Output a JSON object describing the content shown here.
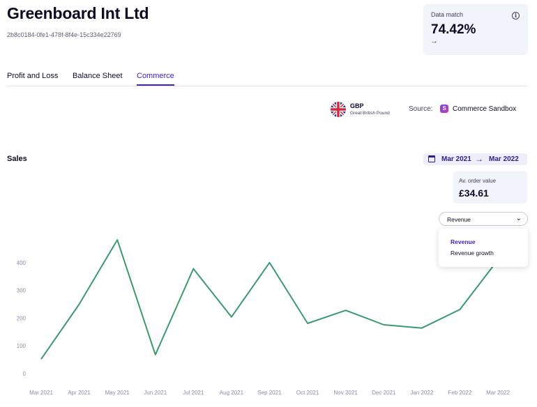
{
  "company": {
    "name": "Greenboard Int Ltd",
    "id": "2b8c0184-0fe1-478f-8f4e-15c334e22769"
  },
  "data_match": {
    "label": "Data match",
    "value": "74.42%",
    "arrow": "→",
    "info_icon": "i"
  },
  "tabs": [
    {
      "label": "Profit and Loss",
      "active": false
    },
    {
      "label": "Balance Sheet",
      "active": false
    },
    {
      "label": "Commerce",
      "active": true
    }
  ],
  "currency": {
    "code": "GBP",
    "name": "Great British Pound",
    "icon": "uk-flag-icon"
  },
  "source": {
    "label": "Source:",
    "name": "Commerce Sandbox",
    "logo_letter": "S"
  },
  "sales": {
    "title": "Sales",
    "date_from": "Mar 2021",
    "date_arrow": "→",
    "date_to": "Mar 2022",
    "aov_label": "Av. order value",
    "aov_value": "£34.61",
    "metric_selected": "Revenue",
    "metric_options": [
      "Revenue",
      "Revenue growth"
    ]
  },
  "colors": {
    "accent": "#3a26c9",
    "line": "#3a9a6e"
  },
  "chart_data": {
    "type": "line",
    "x": [
      "Mar 2021",
      "Apr 2021",
      "May 2021",
      "Jun 2021",
      "Jul 2021",
      "Aug 2021",
      "Sep 2021",
      "Oct 2021",
      "Nov 2021",
      "Dec 2021",
      "Jan 2022",
      "Feb 2022",
      "Mar 2022"
    ],
    "series": [
      {
        "values": [
          52,
          250,
          482,
          68,
          378,
          204,
          400,
          181,
          228,
          176,
          164,
          231,
          410
        ]
      }
    ],
    "yticks": [
      0,
      100,
      200,
      300,
      400
    ],
    "ylim": [
      0,
      500
    ],
    "grid": false
  }
}
